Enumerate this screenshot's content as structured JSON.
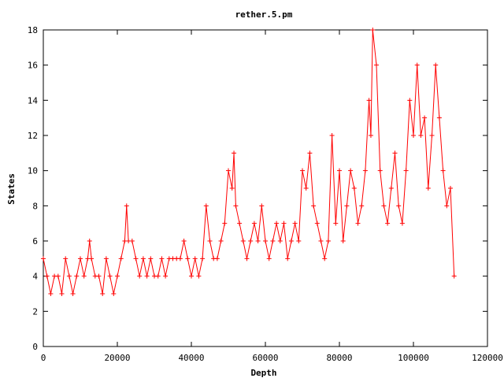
{
  "chart_data": {
    "type": "line",
    "title": "rether.5.pm",
    "xlabel": "Depth",
    "ylabel": "States",
    "xlim": [
      0,
      120000
    ],
    "ylim": [
      0,
      18
    ],
    "x_ticks": [
      0,
      20000,
      40000,
      60000,
      80000,
      100000,
      120000
    ],
    "y_ticks": [
      0,
      2,
      4,
      6,
      8,
      10,
      12,
      14,
      16,
      18
    ],
    "x_tick_labels": [
      "0",
      "20000",
      "40000",
      "60000",
      "80000",
      "100000",
      "120000"
    ],
    "y_tick_labels": [
      "0",
      "2",
      "4",
      "6",
      "8",
      "10",
      "12",
      "14",
      "16",
      "18"
    ],
    "grid": false,
    "legend": "none",
    "marker": "plus",
    "series": [
      {
        "color": "#ff0000",
        "x": [
          0,
          1000,
          2000,
          3000,
          4000,
          5000,
          6000,
          7000,
          8000,
          9000,
          10000,
          11000,
          12000,
          12500,
          13000,
          14000,
          15000,
          16000,
          17000,
          18000,
          19000,
          20000,
          21000,
          22000,
          22500,
          23000,
          24000,
          25000,
          26000,
          27000,
          28000,
          29000,
          30000,
          31000,
          32000,
          33000,
          34000,
          35000,
          36000,
          37000,
          38000,
          39000,
          40000,
          41000,
          42000,
          43000,
          44000,
          45000,
          46000,
          47000,
          48000,
          49000,
          50000,
          51000,
          51500,
          52000,
          53000,
          54000,
          55000,
          56000,
          57000,
          58000,
          59000,
          60000,
          61000,
          62000,
          63000,
          64000,
          65000,
          66000,
          67000,
          68000,
          69000,
          70000,
          71000,
          72000,
          73000,
          74000,
          75000,
          76000,
          77000,
          78000,
          79000,
          80000,
          81000,
          82000,
          83000,
          84000,
          85000,
          86000,
          87000,
          88000,
          88500,
          89000,
          90000,
          91000,
          92000,
          93000,
          94000,
          95000,
          96000,
          97000,
          98000,
          99000,
          100000,
          101000,
          102000,
          103000,
          104000,
          105000,
          106000,
          107000,
          108000,
          109000,
          110000,
          111000
        ],
        "y": [
          5,
          4,
          3,
          4,
          4,
          3,
          5,
          4,
          3,
          4,
          5,
          4,
          5,
          6,
          5,
          4,
          4,
          3,
          5,
          4,
          3,
          4,
          5,
          6,
          8,
          6,
          6,
          5,
          4,
          5,
          4,
          5,
          4,
          4,
          5,
          4,
          5,
          5,
          5,
          5,
          6,
          5,
          4,
          5,
          4,
          5,
          8,
          6,
          5,
          5,
          6,
          7,
          10,
          9,
          11,
          8,
          7,
          6,
          5,
          6,
          7,
          6,
          8,
          6,
          5,
          6,
          7,
          6,
          7,
          5,
          6,
          7,
          6,
          10,
          9,
          11,
          8,
          7,
          6,
          5,
          6,
          12,
          7,
          10,
          6,
          8,
          10,
          9,
          7,
          8,
          10,
          14,
          12,
          18,
          16,
          10,
          8,
          7,
          9,
          11,
          8,
          7,
          10,
          14,
          12,
          16,
          12,
          13,
          9,
          12,
          16,
          13,
          10,
          8,
          9,
          4
        ]
      }
    ]
  }
}
